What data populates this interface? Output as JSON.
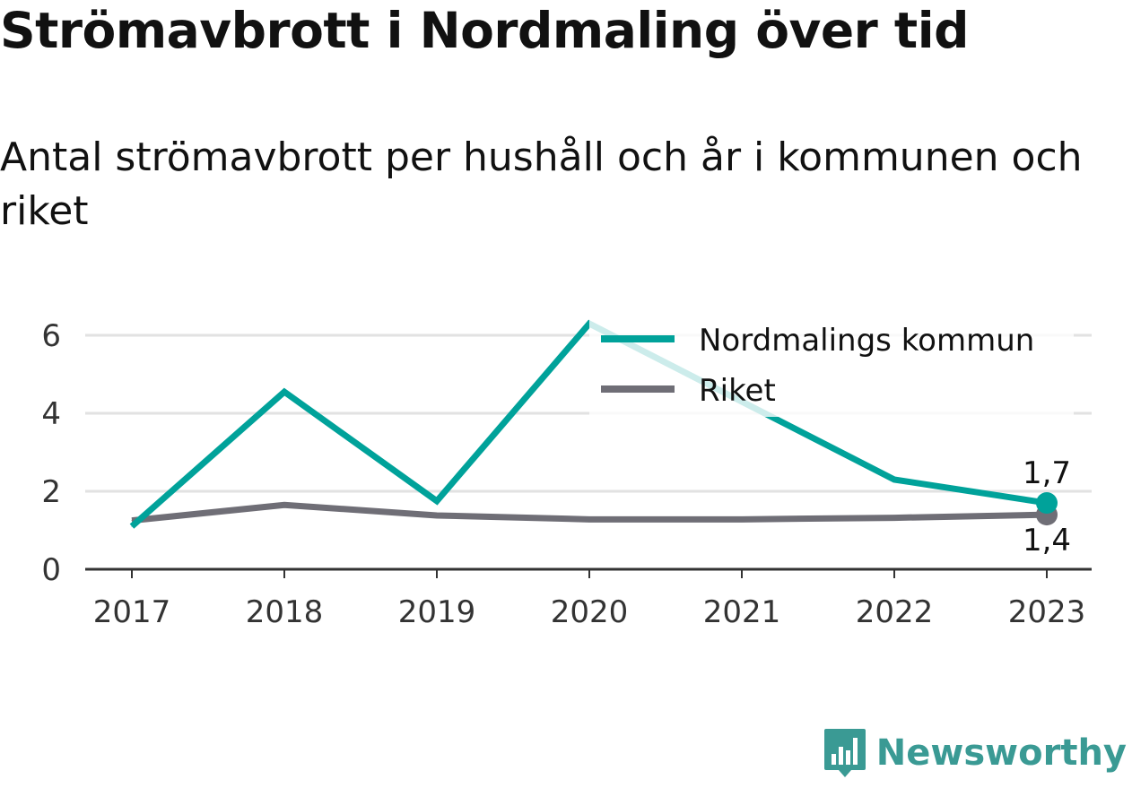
{
  "title": "Strömavbrott i Nordmaling över tid",
  "subtitle": "Antal strömavbrott per hushåll och år i kommunen och riket",
  "brand": "Newsworthy",
  "chart_data": {
    "type": "line",
    "x": [
      "2017",
      "2018",
      "2019",
      "2020",
      "2021",
      "2022",
      "2023"
    ],
    "yticks": [
      0,
      2,
      4,
      6
    ],
    "ylim": [
      0,
      6.5
    ],
    "grid": true,
    "legend": "top-right",
    "series": [
      {
        "name": "Nordmalings kommun",
        "color": "#00a29a",
        "values": [
          1.1,
          4.55,
          1.75,
          6.3,
          4.3,
          2.3,
          1.7
        ],
        "end_label": "1,7"
      },
      {
        "name": "Riket",
        "color": "#6f6e76",
        "values": [
          1.25,
          1.65,
          1.38,
          1.28,
          1.28,
          1.32,
          1.4
        ],
        "end_label": "1,4"
      }
    ]
  }
}
